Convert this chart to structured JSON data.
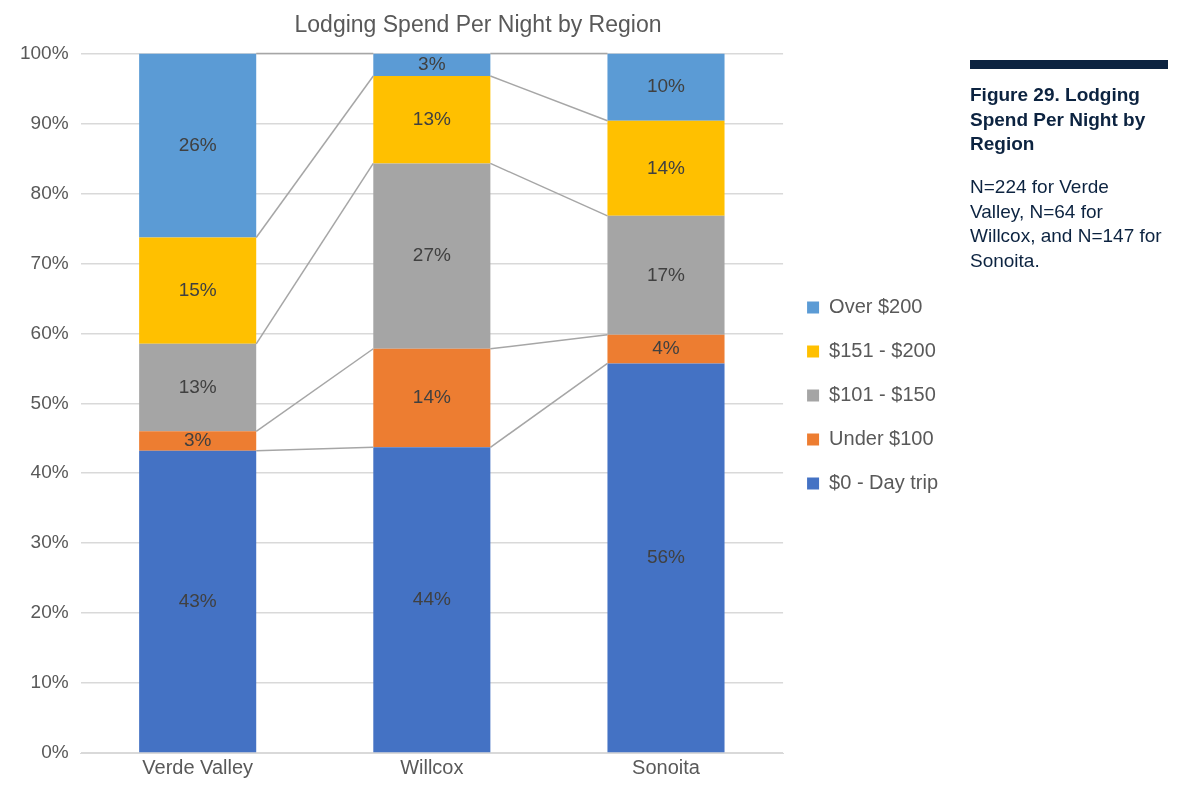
{
  "chart_data": {
    "type": "bar",
    "title": "Lodging Spend Per Night by Region",
    "categories": [
      "Verde Valley",
      "Willcox",
      "Sonoita"
    ],
    "stacked": true,
    "series": [
      {
        "name": "$0 - Day trip",
        "color": "#4472c4",
        "values": [
          43.2,
          43.7,
          55.7
        ],
        "value_labels": [
          "43%",
          "44%",
          "56%"
        ]
      },
      {
        "name": "Under $100",
        "color": "#ed7d31",
        "values": [
          2.8,
          14.1,
          4.1
        ],
        "value_labels": [
          "3%",
          "14%",
          "4%"
        ]
      },
      {
        "name": "$101 - $150",
        "color": "#a5a5a5",
        "values": [
          12.5,
          26.5,
          17
        ],
        "value_labels": [
          "13%",
          "27%",
          "17%"
        ]
      },
      {
        "name": "$151 - $200",
        "color": "#ffc000",
        "values": [
          15.2,
          12.5,
          13.6
        ],
        "value_labels": [
          "15%",
          "13%",
          "14%"
        ]
      },
      {
        "name": "Over $200",
        "color": "#5b9bd5",
        "values": [
          26.3,
          3.2,
          9.6
        ],
        "value_labels": [
          "26%",
          "3%",
          "10%"
        ]
      }
    ],
    "ylim": [
      0,
      100
    ],
    "yticks": [
      {
        "value": 0,
        "label": "0%"
      },
      {
        "value": 10,
        "label": "10%"
      },
      {
        "value": 20,
        "label": "20%"
      },
      {
        "value": 30,
        "label": "30%"
      },
      {
        "value": 40,
        "label": "40%"
      },
      {
        "value": 50,
        "label": "50%"
      },
      {
        "value": 60,
        "label": "60%"
      },
      {
        "value": 70,
        "label": "70%"
      },
      {
        "value": 80,
        "label": "80%"
      },
      {
        "value": 90,
        "label": "90%"
      },
      {
        "value": 100,
        "label": "100%"
      }
    ],
    "grid": "y",
    "legend": "right",
    "annotations": [
      "Figure 29. Lodging Spend Per Night by Region",
      "N=224 for Verde Valley, N=64 for Willcox, and N=147 for Sonoita."
    ]
  }
}
